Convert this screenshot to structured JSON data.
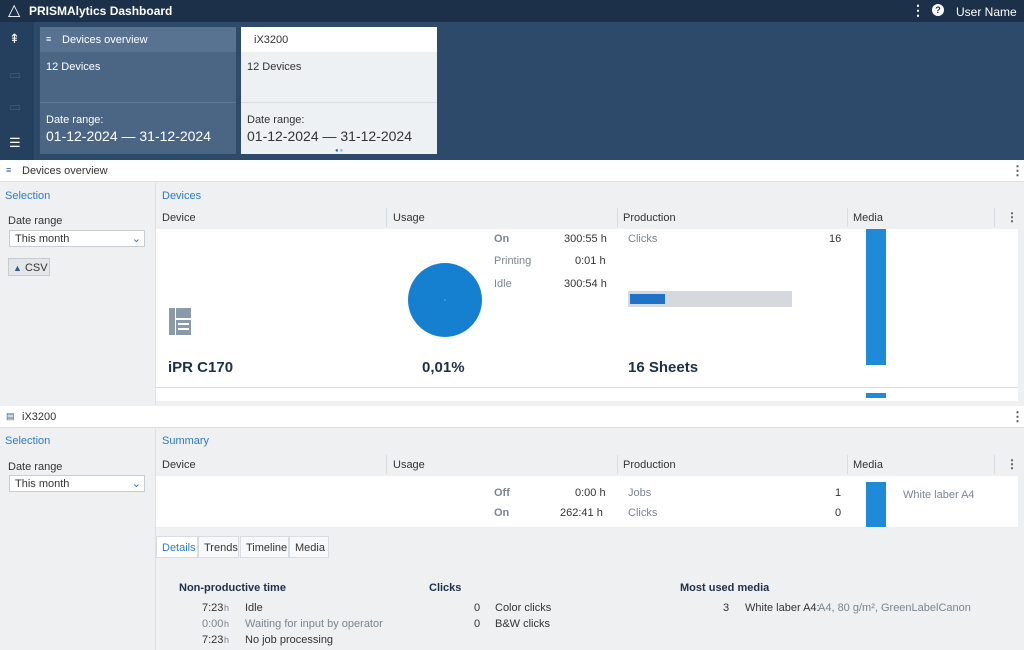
{
  "topbar": {
    "title": "PRISMAlytics Dashboard",
    "user": "User Name",
    "menu_icon": "⋮",
    "help_icon": "?"
  },
  "colors": {
    "accent": "#1e73c8",
    "header_bg": "#1c3049",
    "panel_bg": "#2d4a6b"
  },
  "rail": {
    "icons": [
      "devices-filter-icon",
      "tag-icon",
      "label-icon",
      "menu-icon"
    ]
  },
  "cards": [
    {
      "title": "Devices overview",
      "count": "12 Devices",
      "date_label": "Date range:",
      "date_value": "01-12-2024 — 31-12-2024"
    },
    {
      "title": "iX3200",
      "count": "12 Devices",
      "date_label": "Date range:",
      "date_value": "01-12-2024 — 31-12-2024"
    }
  ],
  "section1": {
    "title": "Devices overview",
    "selection_label": "Selection",
    "date_range_label": "Date range",
    "date_range_value": "This month",
    "csv_label": "CSV",
    "panel_title": "Devices",
    "columns": [
      "Device",
      "Usage",
      "Production",
      "Media"
    ],
    "device_name": "iPR C170",
    "usage": {
      "percent": "0,01%",
      "rows": [
        {
          "label": "On",
          "value": "300:55 h"
        },
        {
          "label": "Printing",
          "value": "0:01 h"
        },
        {
          "label": "Idle",
          "value": "300:54 h"
        }
      ]
    },
    "production": {
      "clicks_label": "Clicks",
      "clicks_value": "16",
      "sheets": "16 Sheets",
      "bar_fill": 0.22
    },
    "media_bar_fill": 1.0
  },
  "section2": {
    "title": "iX3200",
    "selection_label": "Selection",
    "date_range_label": "Date range",
    "date_range_value": "This month",
    "panel_title": "Summary",
    "columns": [
      "Device",
      "Usage",
      "Production",
      "Media"
    ],
    "usage_rows": [
      {
        "label": "Off",
        "value": "0:00 h"
      },
      {
        "label": "On",
        "value": "262:41 h"
      }
    ],
    "production_rows": [
      {
        "label": "Jobs",
        "value": "1"
      },
      {
        "label": "Clicks",
        "value": "0"
      }
    ],
    "media_label": "White laber A4",
    "tabs": [
      "Details",
      "Trends",
      "Timeline",
      "Media"
    ],
    "details": {
      "nonprod_title": "Non-productive time",
      "nonprod": [
        {
          "value": "7:23",
          "unit": "h",
          "label": "Idle"
        },
        {
          "value": "0:00",
          "unit": "h",
          "label": "Waiting for input by operator"
        },
        {
          "value": "7:23",
          "unit": "h",
          "label": "No job processing"
        }
      ],
      "clicks_title": "Clicks",
      "clicks": [
        {
          "value": "0",
          "label": "Color clicks"
        },
        {
          "value": "0",
          "label": "B&W clicks"
        }
      ],
      "media_title": "Most used media",
      "media_count": "3",
      "media_name": "White laber A4:",
      "media_desc": "A4, 80 g/m², GreenLabelCanon"
    }
  }
}
